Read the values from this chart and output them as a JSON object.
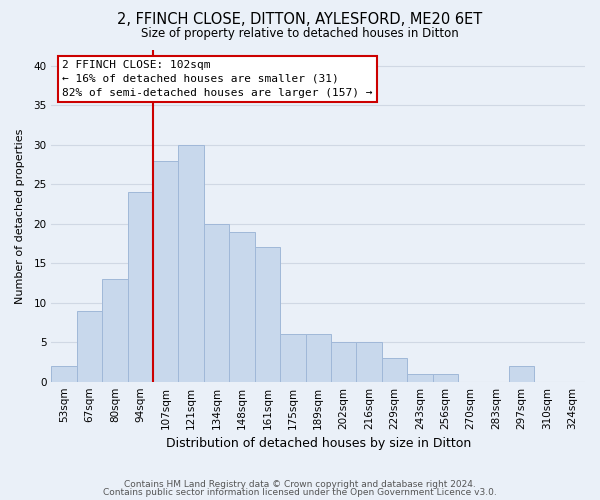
{
  "title": "2, FFINCH CLOSE, DITTON, AYLESFORD, ME20 6ET",
  "subtitle": "Size of property relative to detached houses in Ditton",
  "xlabel": "Distribution of detached houses by size in Ditton",
  "ylabel": "Number of detached properties",
  "bar_color": "#c8d8ec",
  "bar_edge_color": "#a0b8d8",
  "categories": [
    "53sqm",
    "67sqm",
    "80sqm",
    "94sqm",
    "107sqm",
    "121sqm",
    "134sqm",
    "148sqm",
    "161sqm",
    "175sqm",
    "189sqm",
    "202sqm",
    "216sqm",
    "229sqm",
    "243sqm",
    "256sqm",
    "270sqm",
    "283sqm",
    "297sqm",
    "310sqm",
    "324sqm"
  ],
  "values": [
    2,
    9,
    13,
    24,
    28,
    30,
    20,
    19,
    17,
    6,
    6,
    5,
    5,
    3,
    1,
    1,
    0,
    0,
    2,
    0,
    0
  ],
  "vline_color": "#cc0000",
  "vline_index": 4,
  "annotation_text": "2 FFINCH CLOSE: 102sqm\n← 16% of detached houses are smaller (31)\n82% of semi-detached houses are larger (157) →",
  "annotation_box_facecolor": "#ffffff",
  "annotation_box_edgecolor": "#cc0000",
  "ylim": [
    0,
    42
  ],
  "yticks": [
    0,
    5,
    10,
    15,
    20,
    25,
    30,
    35,
    40
  ],
  "footer_line1": "Contains HM Land Registry data © Crown copyright and database right 2024.",
  "footer_line2": "Contains public sector information licensed under the Open Government Licence v3.0.",
  "bg_color": "#eaf0f8",
  "grid_color": "#d0d8e4",
  "title_fontsize": 10.5,
  "subtitle_fontsize": 8.5,
  "xlabel_fontsize": 9,
  "ylabel_fontsize": 8,
  "tick_fontsize": 7.5,
  "ann_fontsize": 8,
  "footer_fontsize": 6.5
}
